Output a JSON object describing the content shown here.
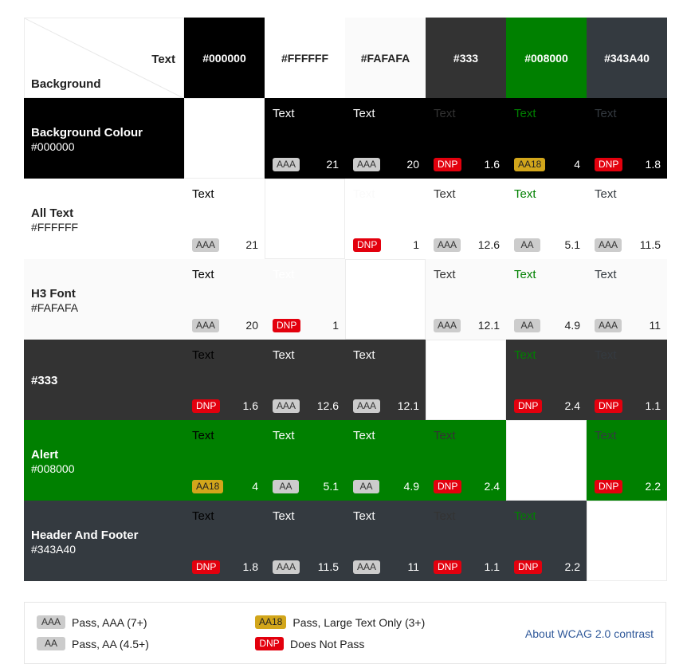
{
  "corner": {
    "text_label": "Text",
    "background_label": "Background"
  },
  "columns": [
    {
      "hex": "#000000",
      "bg": "#000000",
      "fg": "#ffffff"
    },
    {
      "hex": "#FFFFFF",
      "bg": "#ffffff",
      "fg": "#222222"
    },
    {
      "hex": "#FAFAFA",
      "bg": "#fafafa",
      "fg": "#222222"
    },
    {
      "hex": "#333",
      "bg": "#333333",
      "fg": "#ffffff"
    },
    {
      "hex": "#008000",
      "bg": "#008000",
      "fg": "#ffffff"
    },
    {
      "hex": "#343A40",
      "bg": "#343a40",
      "fg": "#ffffff"
    }
  ],
  "rows": [
    {
      "name": "Background Colour",
      "hex": "#000000",
      "bg": "#000000",
      "fg": "#ffffff",
      "cells": [
        null,
        {
          "sample": "Text",
          "badge": "AAA",
          "ratio": "21"
        },
        {
          "sample": "Text",
          "badge": "AAA",
          "ratio": "20"
        },
        {
          "sample": "Text",
          "badge": "DNP",
          "ratio": "1.6"
        },
        {
          "sample": "Text",
          "badge": "AA18",
          "ratio": "4"
        },
        {
          "sample": "Text",
          "badge": "DNP",
          "ratio": "1.8"
        }
      ]
    },
    {
      "name": "All Text",
      "hex": "#FFFFFF",
      "bg": "#ffffff",
      "fg": "#222222",
      "cells": [
        {
          "sample": "Text",
          "badge": "AAA",
          "ratio": "21"
        },
        null,
        {
          "sample": "Text",
          "badge": "DNP",
          "ratio": "1"
        },
        {
          "sample": "Text",
          "badge": "AAA",
          "ratio": "12.6"
        },
        {
          "sample": "Text",
          "badge": "AA",
          "ratio": "5.1"
        },
        {
          "sample": "Text",
          "badge": "AAA",
          "ratio": "11.5"
        }
      ]
    },
    {
      "name": "H3 Font",
      "hex": "#FAFAFA",
      "bg": "#fafafa",
      "fg": "#222222",
      "cells": [
        {
          "sample": "Text",
          "badge": "AAA",
          "ratio": "20"
        },
        {
          "sample": "Text",
          "badge": "DNP",
          "ratio": "1"
        },
        null,
        {
          "sample": "Text",
          "badge": "AAA",
          "ratio": "12.1"
        },
        {
          "sample": "Text",
          "badge": "AA",
          "ratio": "4.9"
        },
        {
          "sample": "Text",
          "badge": "AAA",
          "ratio": "11"
        }
      ]
    },
    {
      "name": "#333",
      "hex": "",
      "bg": "#333333",
      "fg": "#ffffff",
      "cells": [
        {
          "sample": "Text",
          "badge": "DNP",
          "ratio": "1.6"
        },
        {
          "sample": "Text",
          "badge": "AAA",
          "ratio": "12.6"
        },
        {
          "sample": "Text",
          "badge": "AAA",
          "ratio": "12.1"
        },
        null,
        {
          "sample": "Text",
          "badge": "DNP",
          "ratio": "2.4"
        },
        {
          "sample": "Text",
          "badge": "DNP",
          "ratio": "1.1"
        }
      ]
    },
    {
      "name": "Alert",
      "hex": "#008000",
      "bg": "#008000",
      "fg": "#ffffff",
      "cells": [
        {
          "sample": "Text",
          "badge": "AA18",
          "ratio": "4"
        },
        {
          "sample": "Text",
          "badge": "AA",
          "ratio": "5.1"
        },
        {
          "sample": "Text",
          "badge": "AA",
          "ratio": "4.9"
        },
        {
          "sample": "Text",
          "badge": "DNP",
          "ratio": "2.4"
        },
        null,
        {
          "sample": "Text",
          "badge": "DNP",
          "ratio": "2.2"
        }
      ]
    },
    {
      "name": "Header And Footer",
      "hex": "#343A40",
      "bg": "#343a40",
      "fg": "#ffffff",
      "cells": [
        {
          "sample": "Text",
          "badge": "DNP",
          "ratio": "1.8"
        },
        {
          "sample": "Text",
          "badge": "AAA",
          "ratio": "11.5"
        },
        {
          "sample": "Text",
          "badge": "AAA",
          "ratio": "11"
        },
        {
          "sample": "Text",
          "badge": "DNP",
          "ratio": "1.1"
        },
        {
          "sample": "Text",
          "badge": "DNP",
          "ratio": "2.2"
        },
        null
      ]
    }
  ],
  "sample_colors": [
    "#000000",
    "#ffffff",
    "#fafafa",
    "#333333",
    "#008000",
    "#343a40"
  ],
  "legend": {
    "aaa": {
      "badge": "AAA",
      "label": "Pass, AAA (7+)"
    },
    "aa": {
      "badge": "AA",
      "label": "Pass, AA (4.5+)"
    },
    "aa18": {
      "badge": "AA18",
      "label": "Pass, Large Text Only (3+)"
    },
    "dnp": {
      "badge": "DNP",
      "label": "Does Not Pass"
    },
    "link": "About WCAG 2.0 contrast"
  },
  "badge_colors": {
    "AAA": "#cccccc",
    "AA": "#cccccc",
    "AA18": "#d2a61b",
    "DNP": "#e3000d"
  }
}
